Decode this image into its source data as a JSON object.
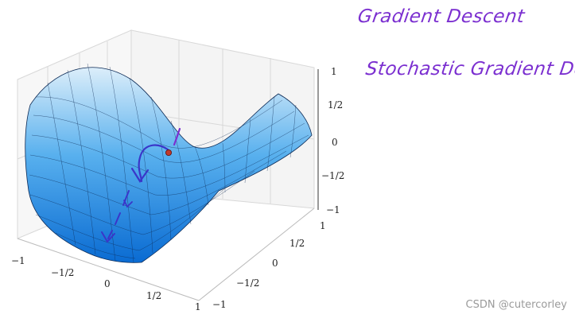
{
  "notes": {
    "line1": "Gradient Descent",
    "line2": "Stochastic Gradient Descent"
  },
  "axes": {
    "z_ticks": [
      "1",
      "1/2",
      "0",
      "−1/2",
      "−1"
    ],
    "x_ticks": [
      "−1",
      "−1/2",
      "0",
      "1/2",
      "1"
    ],
    "y_ticks": [
      "−1",
      "−1/2",
      "0",
      "1/2",
      "1"
    ]
  },
  "surface": {
    "type": "saddle",
    "function": "z = x^2 - y^2",
    "colormap": "blue",
    "grid": true
  },
  "annotations": {
    "point_color": "#c0392b",
    "arrow_color": "#3a36c9",
    "tick_mark_color": "#7b2fd0"
  },
  "watermark": "CSDN @cutercorley"
}
